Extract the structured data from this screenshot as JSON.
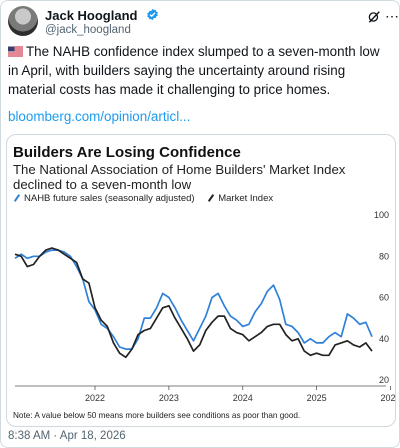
{
  "author": {
    "name": "Jack Hoogland",
    "handle": "@jack_hoogland"
  },
  "tweet": {
    "text": "The NAHB confidence index slumped to a seven-month low in April, with builders saying the uncertainty around rising material costs has made it challenging to price homes.",
    "link": "bloomberg.com/opinion/articl...",
    "timestamp": "8:38 AM · Apr 18, 2026"
  },
  "icons": {
    "verified": "verified-badge-icon",
    "grok": "grok-icon",
    "more": "more-icon",
    "flag": "us-flag-icon"
  },
  "colors": {
    "link": "#1d9bf0",
    "series_blue": "#2f80d8",
    "series_black": "#222222"
  },
  "chart_data": {
    "type": "line",
    "title": "Builders Are Losing Confidence",
    "subtitle": "The National Association of Home Builders' Market Index declined to a seven-month low",
    "note": "Note: A value below 50 means more builders see conditions as poor than good.",
    "legend_placement": "top-left",
    "x_tick_labels": [
      "2022",
      "2023",
      "2024",
      "2025",
      "2026"
    ],
    "y_tick_labels": [
      "100",
      "80",
      "60",
      "40",
      "20"
    ],
    "ylim": [
      20,
      100
    ],
    "grid": false,
    "series": [
      {
        "name": "NAHB future sales (seasonally adjusted)",
        "color": "#2f80d8",
        "points": [
          [
            "2021-06",
            79
          ],
          [
            "2021-07",
            81
          ],
          [
            "2021-08",
            79
          ],
          [
            "2021-09",
            80
          ],
          [
            "2021-10",
            80
          ],
          [
            "2021-11",
            82
          ],
          [
            "2021-12",
            83
          ],
          [
            "2022-01",
            83
          ],
          [
            "2022-02",
            82
          ],
          [
            "2022-03",
            80
          ],
          [
            "2022-04",
            75
          ],
          [
            "2022-05",
            69
          ],
          [
            "2022-06",
            58
          ],
          [
            "2022-07",
            54
          ],
          [
            "2022-08",
            47
          ],
          [
            "2022-09",
            45
          ],
          [
            "2022-10",
            41
          ],
          [
            "2022-11",
            36
          ],
          [
            "2022-12",
            35
          ],
          [
            "2023-01",
            35
          ],
          [
            "2023-02",
            40
          ],
          [
            "2023-03",
            50
          ],
          [
            "2023-04",
            50
          ],
          [
            "2023-05",
            55
          ],
          [
            "2023-06",
            62
          ],
          [
            "2023-07",
            60
          ],
          [
            "2023-08",
            55
          ],
          [
            "2023-09",
            49
          ],
          [
            "2023-10",
            44
          ],
          [
            "2023-11",
            39
          ],
          [
            "2023-12",
            45
          ],
          [
            "2024-01",
            51
          ],
          [
            "2024-02",
            60
          ],
          [
            "2024-03",
            62
          ],
          [
            "2024-04",
            56
          ],
          [
            "2024-05",
            51
          ],
          [
            "2024-06",
            49
          ],
          [
            "2024-07",
            46
          ],
          [
            "2024-08",
            47
          ],
          [
            "2024-09",
            53
          ],
          [
            "2024-10",
            57
          ],
          [
            "2024-11",
            63
          ],
          [
            "2024-12",
            66
          ],
          [
            "2025-01",
            59
          ],
          [
            "2025-02",
            47
          ],
          [
            "2025-03",
            46
          ],
          [
            "2025-04",
            43
          ],
          [
            "2025-05",
            38
          ],
          [
            "2025-06",
            40
          ],
          [
            "2025-07",
            38
          ],
          [
            "2025-08",
            38
          ],
          [
            "2025-09",
            41
          ],
          [
            "2025-10",
            43
          ],
          [
            "2025-11",
            41
          ],
          [
            "2025-12",
            52
          ],
          [
            "2026-01",
            50
          ],
          [
            "2026-02",
            47
          ],
          [
            "2026-03",
            48
          ],
          [
            "2026-04",
            41
          ]
        ]
      },
      {
        "name": "Market Index",
        "color": "#222222",
        "points": [
          [
            "2021-06",
            81
          ],
          [
            "2021-07",
            80
          ],
          [
            "2021-08",
            75
          ],
          [
            "2021-09",
            76
          ],
          [
            "2021-10",
            80
          ],
          [
            "2021-11",
            83
          ],
          [
            "2021-12",
            84
          ],
          [
            "2022-01",
            83
          ],
          [
            "2022-02",
            81
          ],
          [
            "2022-03",
            79
          ],
          [
            "2022-04",
            77
          ],
          [
            "2022-05",
            69
          ],
          [
            "2022-06",
            67
          ],
          [
            "2022-07",
            55
          ],
          [
            "2022-08",
            49
          ],
          [
            "2022-09",
            46
          ],
          [
            "2022-10",
            38
          ],
          [
            "2022-11",
            33
          ],
          [
            "2022-12",
            31
          ],
          [
            "2023-01",
            35
          ],
          [
            "2023-02",
            42
          ],
          [
            "2023-03",
            44
          ],
          [
            "2023-04",
            45
          ],
          [
            "2023-05",
            50
          ],
          [
            "2023-06",
            55
          ],
          [
            "2023-07",
            56
          ],
          [
            "2023-08",
            50
          ],
          [
            "2023-09",
            45
          ],
          [
            "2023-10",
            40
          ],
          [
            "2023-11",
            34
          ],
          [
            "2023-12",
            37
          ],
          [
            "2024-01",
            44
          ],
          [
            "2024-02",
            48
          ],
          [
            "2024-03",
            51
          ],
          [
            "2024-04",
            51
          ],
          [
            "2024-05",
            45
          ],
          [
            "2024-06",
            43
          ],
          [
            "2024-07",
            42
          ],
          [
            "2024-08",
            39
          ],
          [
            "2024-09",
            41
          ],
          [
            "2024-10",
            43
          ],
          [
            "2024-11",
            46
          ],
          [
            "2024-12",
            47
          ],
          [
            "2025-01",
            47
          ],
          [
            "2025-02",
            42
          ],
          [
            "2025-03",
            39
          ],
          [
            "2025-04",
            40
          ],
          [
            "2025-05",
            34
          ],
          [
            "2025-06",
            32
          ],
          [
            "2025-07",
            33
          ],
          [
            "2025-08",
            32
          ],
          [
            "2025-09",
            32
          ],
          [
            "2025-10",
            37
          ],
          [
            "2025-11",
            38
          ],
          [
            "2025-12",
            39
          ],
          [
            "2026-01",
            37
          ],
          [
            "2026-02",
            36
          ],
          [
            "2026-03",
            38
          ],
          [
            "2026-04",
            34
          ]
        ]
      }
    ]
  }
}
